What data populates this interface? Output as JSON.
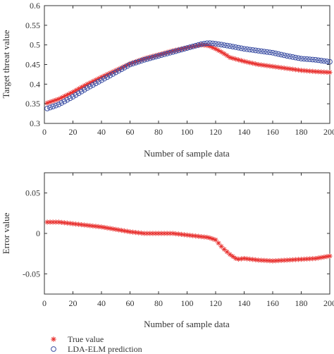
{
  "chart_data": [
    {
      "type": "line",
      "xlabel": "Number of sample data",
      "ylabel": "Target threat value",
      "xlim": [
        0,
        200
      ],
      "ylim": [
        0.3,
        0.6
      ],
      "xticks": [
        "0",
        "20",
        "40",
        "60",
        "80",
        "100",
        "120",
        "140",
        "160",
        "180",
        "200"
      ],
      "yticks": [
        "0.3",
        "0.35",
        "0.4",
        "0.45",
        "0.5",
        "0.55",
        "0.6"
      ],
      "grid": false,
      "series": [
        {
          "name": "True value",
          "color": "#e8312f",
          "marker": "asterisk",
          "x": [
            2,
            10,
            20,
            30,
            40,
            50,
            60,
            70,
            80,
            90,
            100,
            110,
            115,
            120,
            125,
            130,
            140,
            150,
            160,
            170,
            180,
            190,
            200
          ],
          "y": [
            0.352,
            0.362,
            0.38,
            0.4,
            0.418,
            0.435,
            0.452,
            0.465,
            0.475,
            0.485,
            0.493,
            0.5,
            0.498,
            0.49,
            0.48,
            0.468,
            0.458,
            0.45,
            0.445,
            0.44,
            0.435,
            0.432,
            0.43
          ]
        },
        {
          "name": "LDA-ELM prediction",
          "color": "#3b4ea3",
          "marker": "circle",
          "x": [
            2,
            10,
            20,
            30,
            40,
            50,
            60,
            70,
            80,
            90,
            100,
            110,
            115,
            120,
            125,
            130,
            140,
            150,
            160,
            170,
            180,
            190,
            200
          ],
          "y": [
            0.338,
            0.348,
            0.368,
            0.39,
            0.41,
            0.43,
            0.45,
            0.462,
            0.472,
            0.482,
            0.492,
            0.502,
            0.505,
            0.503,
            0.5,
            0.497,
            0.49,
            0.485,
            0.48,
            0.472,
            0.465,
            0.462,
            0.457
          ]
        }
      ]
    },
    {
      "type": "line",
      "xlabel": "Number of sample data",
      "ylabel": "Error value",
      "xlim": [
        0,
        200
      ],
      "ylim": [
        -0.075,
        0.075
      ],
      "xticks": [
        "0",
        "20",
        "40",
        "60",
        "80",
        "100",
        "120",
        "140",
        "160",
        "180",
        "200"
      ],
      "yticks": [
        "-0.05",
        "0",
        "0.05"
      ],
      "grid": false,
      "series": [
        {
          "color": "#e8312f",
          "marker": "asterisk",
          "x": [
            2,
            10,
            20,
            30,
            40,
            50,
            60,
            70,
            80,
            90,
            100,
            110,
            115,
            120,
            125,
            130,
            135,
            140,
            150,
            160,
            170,
            180,
            190,
            200
          ],
          "y": [
            0.014,
            0.014,
            0.012,
            0.01,
            0.008,
            0.005,
            0.002,
            0.0,
            0.0,
            0.0,
            -0.002,
            -0.004,
            -0.005,
            -0.008,
            -0.018,
            -0.026,
            -0.032,
            -0.031,
            -0.033,
            -0.034,
            -0.033,
            -0.032,
            -0.031,
            -0.028
          ]
        }
      ]
    }
  ],
  "legend": {
    "placement": "bottom-left",
    "items": [
      {
        "label": "True value",
        "color": "#e8312f",
        "marker": "asterisk"
      },
      {
        "label": "LDA-ELM prediction",
        "color": "#3b4ea3",
        "marker": "circle"
      }
    ]
  }
}
